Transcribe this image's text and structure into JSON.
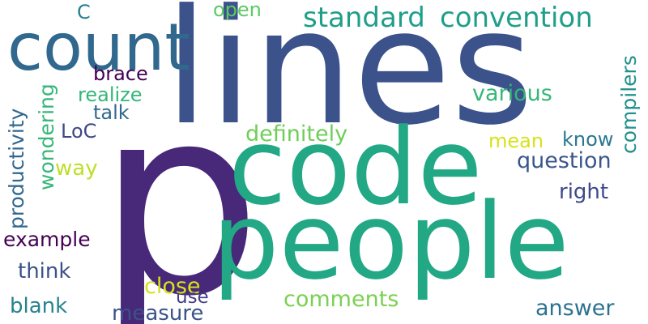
{
  "wordcloud": {
    "words": [
      {
        "text": "lines",
        "color": "#3b528b"
      },
      {
        "text": "p",
        "color": "#482878"
      },
      {
        "text": "code",
        "color": "#22a884"
      },
      {
        "text": "people",
        "color": "#22a884"
      },
      {
        "text": "count",
        "color": "#31688e"
      },
      {
        "text": "standard",
        "color": "#1f9e89"
      },
      {
        "text": "convention",
        "color": "#1f9e89"
      },
      {
        "text": "open",
        "color": "#5ec962"
      },
      {
        "text": "C",
        "color": "#26828e"
      },
      {
        "text": "brace",
        "color": "#440154"
      },
      {
        "text": "realize",
        "color": "#35b779"
      },
      {
        "text": "talk",
        "color": "#31688e"
      },
      {
        "text": "various",
        "color": "#35b779"
      },
      {
        "text": "compilers",
        "color": "#21918c"
      },
      {
        "text": "productivity",
        "color": "#31688e"
      },
      {
        "text": "wondering",
        "color": "#35b779"
      },
      {
        "text": "LoC",
        "color": "#3e4989"
      },
      {
        "text": "definitely",
        "color": "#6ece58"
      },
      {
        "text": "know",
        "color": "#2a788e"
      },
      {
        "text": "mean",
        "color": "#d8e219"
      },
      {
        "text": "way",
        "color": "#bddf26"
      },
      {
        "text": "question",
        "color": "#39568c"
      },
      {
        "text": "right",
        "color": "#3e4989"
      },
      {
        "text": "example",
        "color": "#440154"
      },
      {
        "text": "think",
        "color": "#3b528b"
      },
      {
        "text": "close",
        "color": "#d8e219"
      },
      {
        "text": "use",
        "color": "#433e85"
      },
      {
        "text": "blank",
        "color": "#26828e"
      },
      {
        "text": "measure",
        "color": "#3b528b"
      },
      {
        "text": "comments",
        "color": "#7ad151"
      },
      {
        "text": "answer",
        "color": "#2c728e"
      }
    ]
  }
}
